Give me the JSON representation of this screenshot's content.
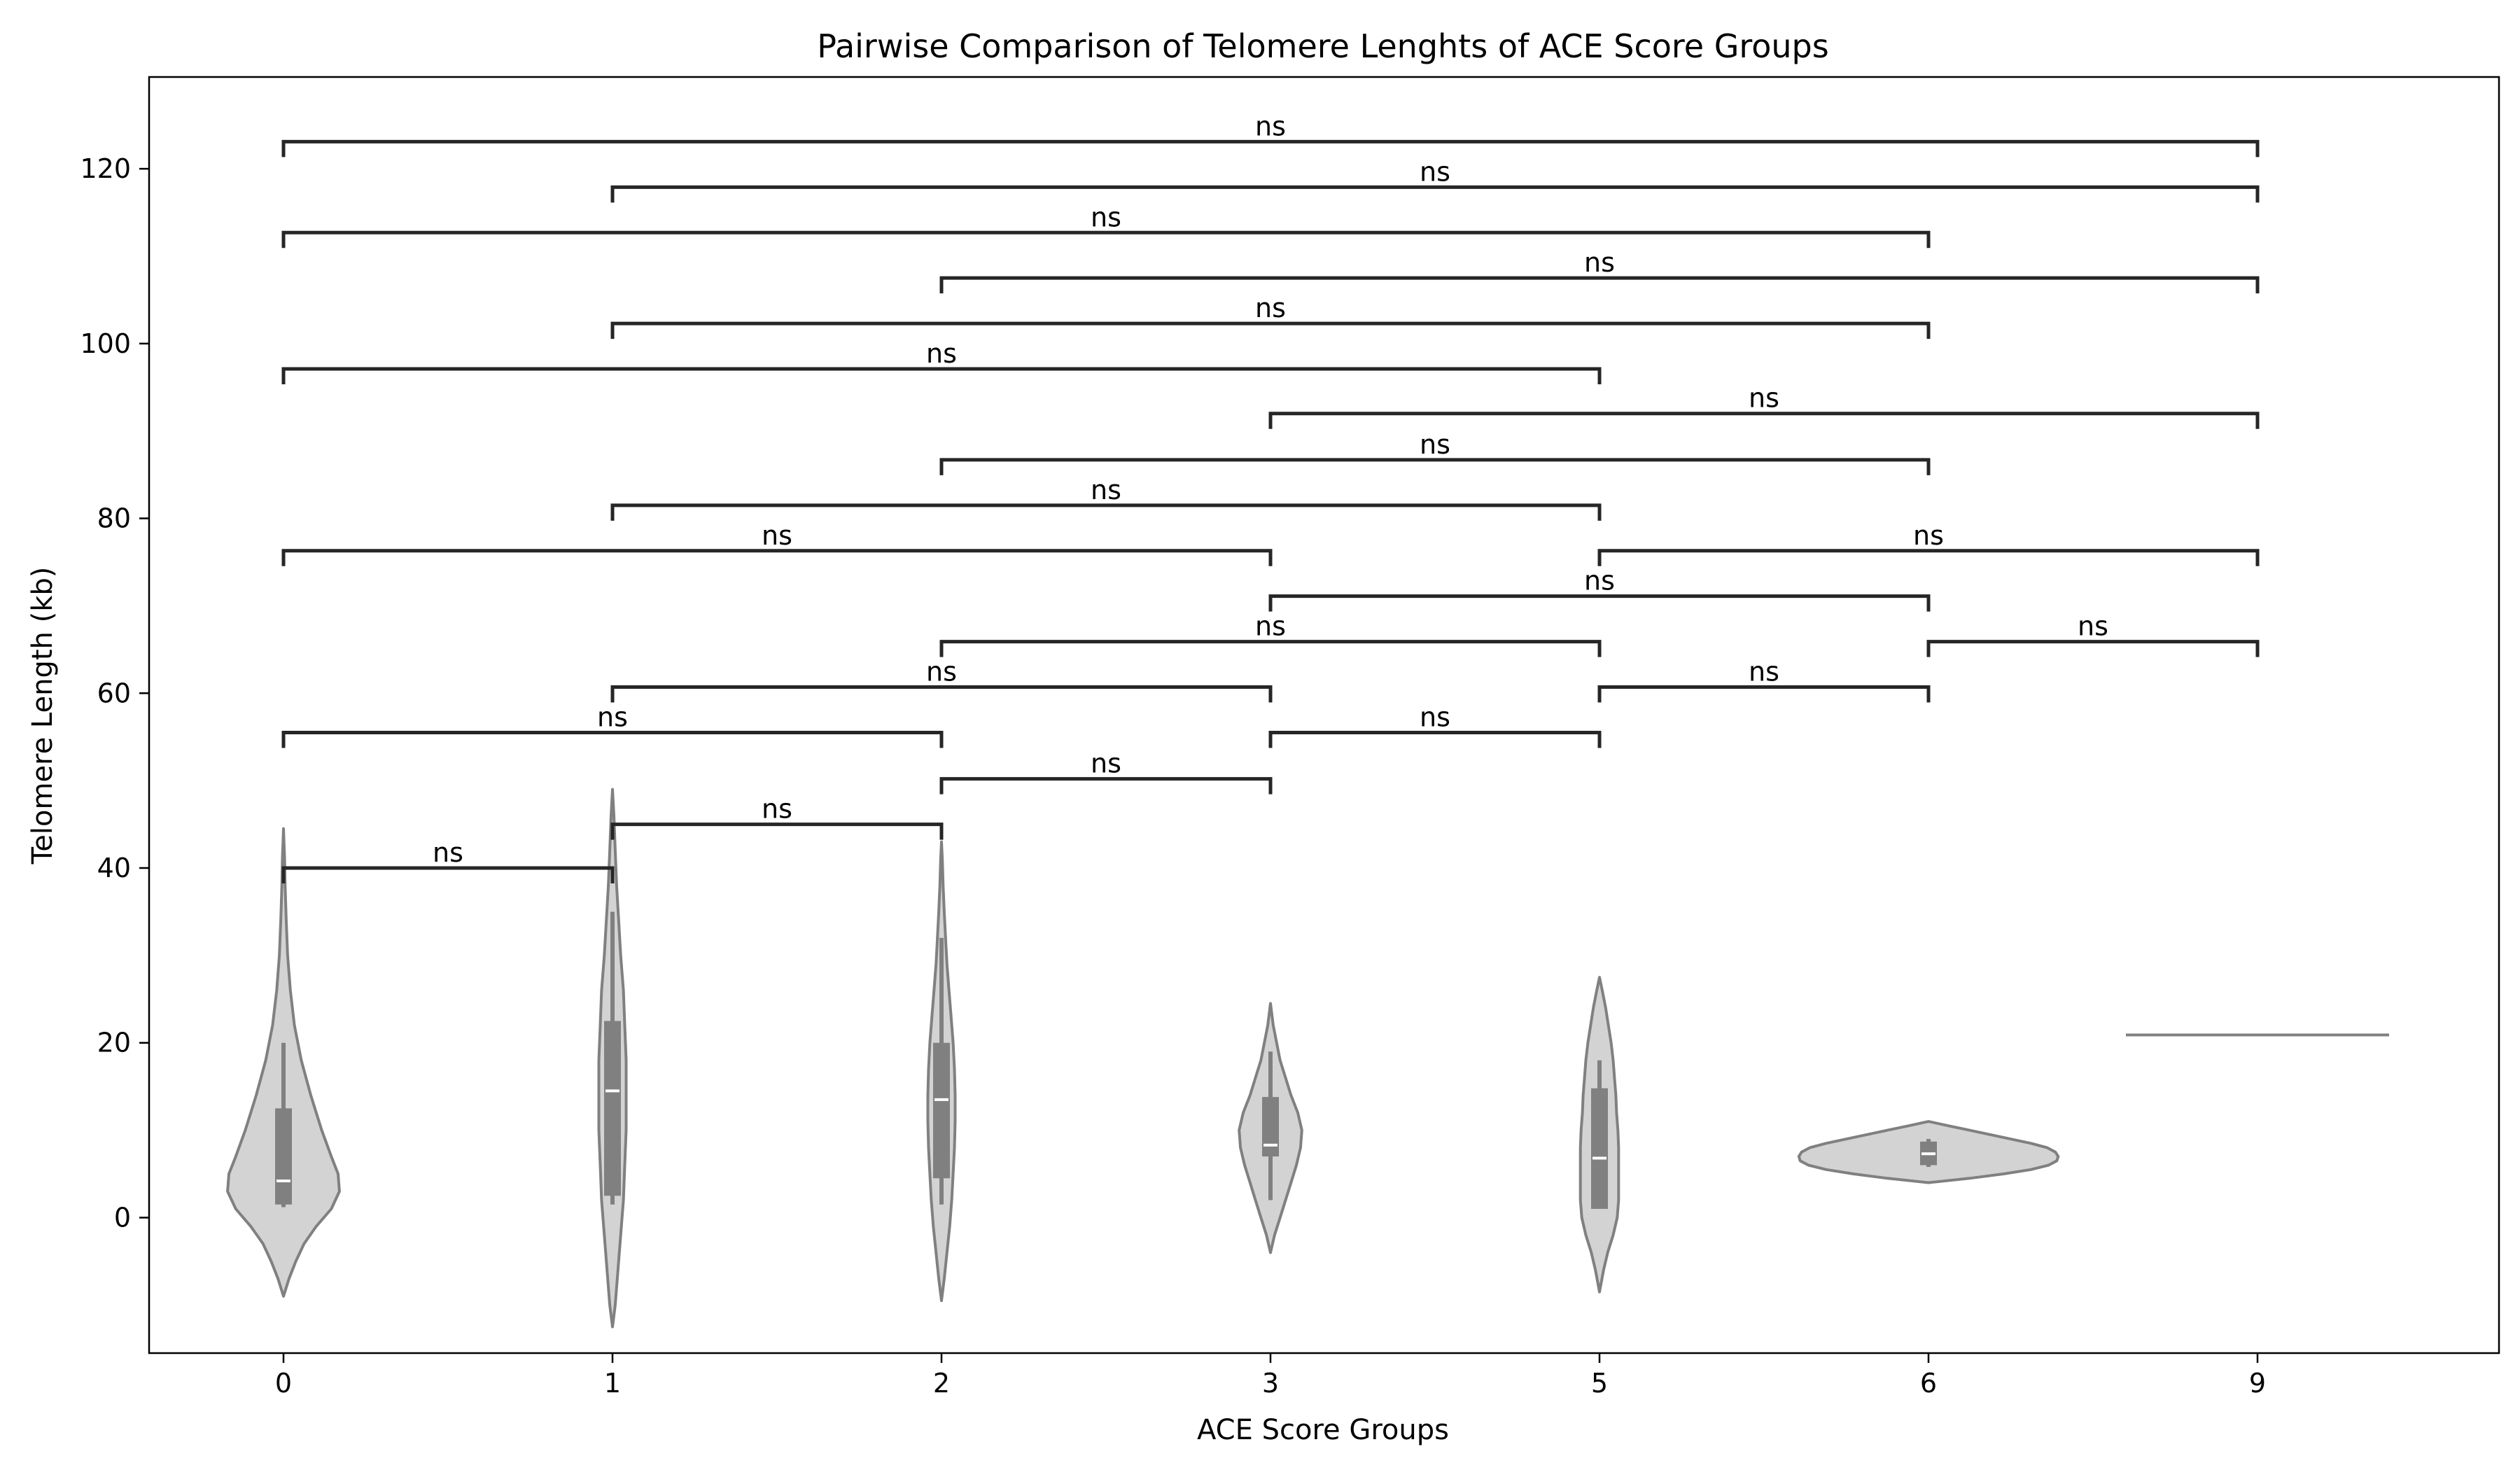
{
  "chart_data": {
    "type": "violin",
    "title": "Pairwise Comparison of Telomere Lenghts of ACE Score Groups",
    "xlabel": "ACE Score Groups",
    "ylabel": "Telomere Length (kb)",
    "categories": [
      "0",
      "1",
      "2",
      "3",
      "5",
      "6",
      "9"
    ],
    "ylim": [
      -15.5,
      130.5
    ],
    "yticks": [
      0,
      20,
      40,
      60,
      80,
      100,
      120
    ],
    "grid": false,
    "legend": "none",
    "colors": {
      "violin_fill": "#d3d3d3",
      "violin_edge": "#808080",
      "box": "#808080",
      "median": "#ffffff",
      "bracket": "#262626",
      "axes": "#000000"
    },
    "groups": [
      {
        "category": "0",
        "kde_min": -9,
        "kde_max": 44.5,
        "whisker_low": 1.2,
        "whisker_high": 20,
        "q1": 1.5,
        "median": 4.2,
        "q3": 12.5,
        "profile": [
          [
            -9,
            0
          ],
          [
            -7,
            0.04
          ],
          [
            -5,
            0.09
          ],
          [
            -3,
            0.15
          ],
          [
            -1,
            0.24
          ],
          [
            1,
            0.35
          ],
          [
            3,
            0.41
          ],
          [
            5,
            0.4
          ],
          [
            7,
            0.35
          ],
          [
            10,
            0.28
          ],
          [
            14,
            0.2
          ],
          [
            18,
            0.13
          ],
          [
            22,
            0.08
          ],
          [
            26,
            0.05
          ],
          [
            30,
            0.03
          ],
          [
            34,
            0.02
          ],
          [
            38,
            0.012
          ],
          [
            41,
            0.008
          ],
          [
            44.5,
            0
          ]
        ]
      },
      {
        "category": "1",
        "kde_min": -12.5,
        "kde_max": 49,
        "whisker_low": 1.5,
        "whisker_high": 35,
        "q1": 2.5,
        "median": 14.5,
        "q3": 22.5,
        "profile": [
          [
            -12.5,
            0
          ],
          [
            -10,
            0.02
          ],
          [
            -6,
            0.04
          ],
          [
            -2,
            0.06
          ],
          [
            2,
            0.08
          ],
          [
            6,
            0.09
          ],
          [
            10,
            0.1
          ],
          [
            14,
            0.1
          ],
          [
            18,
            0.1
          ],
          [
            22,
            0.09
          ],
          [
            26,
            0.08
          ],
          [
            30,
            0.06
          ],
          [
            34,
            0.045
          ],
          [
            38,
            0.03
          ],
          [
            42,
            0.02
          ],
          [
            46,
            0.01
          ],
          [
            49,
            0
          ]
        ]
      },
      {
        "category": "2",
        "kde_min": -9.5,
        "kde_max": 43,
        "whisker_low": 1.5,
        "whisker_high": 32,
        "q1": 4.5,
        "median": 13.5,
        "q3": 20,
        "profile": [
          [
            -9.5,
            0
          ],
          [
            -7,
            0.02
          ],
          [
            -4,
            0.04
          ],
          [
            -1,
            0.06
          ],
          [
            2,
            0.075
          ],
          [
            5,
            0.085
          ],
          [
            8,
            0.095
          ],
          [
            11,
            0.1
          ],
          [
            14,
            0.1
          ],
          [
            17,
            0.095
          ],
          [
            20,
            0.085
          ],
          [
            23,
            0.07
          ],
          [
            26,
            0.055
          ],
          [
            29,
            0.04
          ],
          [
            32,
            0.03
          ],
          [
            35,
            0.02
          ],
          [
            38,
            0.012
          ],
          [
            41,
            0.006
          ],
          [
            43,
            0
          ]
        ]
      },
      {
        "category": "3",
        "kde_min": -4,
        "kde_max": 24.5,
        "whisker_low": 2,
        "whisker_high": 19,
        "q1": 7,
        "median": 8.3,
        "q3": 13.8,
        "profile": [
          [
            -4,
            0
          ],
          [
            -2,
            0.03
          ],
          [
            0,
            0.07
          ],
          [
            2,
            0.11
          ],
          [
            4,
            0.15
          ],
          [
            6,
            0.19
          ],
          [
            8,
            0.22
          ],
          [
            10,
            0.23
          ],
          [
            12,
            0.2
          ],
          [
            14,
            0.15
          ],
          [
            16,
            0.11
          ],
          [
            18,
            0.07
          ],
          [
            20,
            0.045
          ],
          [
            22,
            0.02
          ],
          [
            24.5,
            0
          ]
        ]
      },
      {
        "category": "5",
        "kde_min": -8.5,
        "kde_max": 27.5,
        "whisker_low": 1,
        "whisker_high": 18,
        "q1": 1,
        "median": 6.8,
        "q3": 14.8,
        "profile": [
          [
            -8.5,
            0
          ],
          [
            -6,
            0.03
          ],
          [
            -4,
            0.06
          ],
          [
            -2,
            0.1
          ],
          [
            0,
            0.13
          ],
          [
            2,
            0.14
          ],
          [
            4,
            0.14
          ],
          [
            6,
            0.14
          ],
          [
            8,
            0.14
          ],
          [
            10,
            0.135
          ],
          [
            12,
            0.125
          ],
          [
            14,
            0.12
          ],
          [
            16,
            0.11
          ],
          [
            18,
            0.1
          ],
          [
            20,
            0.085
          ],
          [
            22,
            0.065
          ],
          [
            24,
            0.045
          ],
          [
            26,
            0.02
          ],
          [
            27.5,
            0
          ]
        ]
      },
      {
        "category": "6",
        "kde_min": 4,
        "kde_max": 11,
        "whisker_low": 5.8,
        "whisker_high": 9,
        "q1": 6,
        "median": 7.3,
        "q3": 8.7,
        "profile": [
          [
            4,
            0
          ],
          [
            4.5,
            0.3
          ],
          [
            5,
            0.55
          ],
          [
            5.5,
            0.75
          ],
          [
            6,
            0.88
          ],
          [
            6.5,
            0.94
          ],
          [
            7,
            0.95
          ],
          [
            7.5,
            0.93
          ],
          [
            8,
            0.87
          ],
          [
            8.5,
            0.75
          ],
          [
            9,
            0.6
          ],
          [
            9.5,
            0.45
          ],
          [
            10,
            0.3
          ],
          [
            10.5,
            0.15
          ],
          [
            11,
            0
          ]
        ]
      },
      {
        "category": "9",
        "kde_min": 20.9,
        "kde_max": 20.9,
        "single_value": 20.9,
        "line_halfwidth": 0.4
      }
    ],
    "comparisons": [
      {
        "a": "0",
        "b": "1",
        "y": 40,
        "label": "ns"
      },
      {
        "a": "1",
        "b": "2",
        "y": 45,
        "label": "ns"
      },
      {
        "a": "2",
        "b": "3",
        "y": 50.2,
        "label": "ns"
      },
      {
        "a": "0",
        "b": "2",
        "y": 55.5,
        "label": "ns"
      },
      {
        "a": "3",
        "b": "5",
        "y": 55.5,
        "label": "ns"
      },
      {
        "a": "1",
        "b": "3",
        "y": 60.7,
        "label": "ns"
      },
      {
        "a": "5",
        "b": "6",
        "y": 60.7,
        "label": "ns"
      },
      {
        "a": "2",
        "b": "5",
        "y": 65.9,
        "label": "ns"
      },
      {
        "a": "6",
        "b": "9",
        "y": 65.9,
        "label": "ns"
      },
      {
        "a": "3",
        "b": "6",
        "y": 71.1,
        "label": "ns"
      },
      {
        "a": "0",
        "b": "3",
        "y": 76.3,
        "label": "ns"
      },
      {
        "a": "5",
        "b": "9",
        "y": 76.3,
        "label": "ns"
      },
      {
        "a": "1",
        "b": "5",
        "y": 81.5,
        "label": "ns"
      },
      {
        "a": "2",
        "b": "6",
        "y": 86.7,
        "label": "ns"
      },
      {
        "a": "3",
        "b": "9",
        "y": 92,
        "label": "ns"
      },
      {
        "a": "0",
        "b": "5",
        "y": 97.1,
        "label": "ns"
      },
      {
        "a": "1",
        "b": "6",
        "y": 102.3,
        "label": "ns"
      },
      {
        "a": "2",
        "b": "9",
        "y": 107.5,
        "label": "ns"
      },
      {
        "a": "0",
        "b": "6",
        "y": 112.7,
        "label": "ns"
      },
      {
        "a": "1",
        "b": "9",
        "y": 117.9,
        "label": "ns"
      },
      {
        "a": "0",
        "b": "9",
        "y": 123.1,
        "label": "ns"
      }
    ]
  }
}
